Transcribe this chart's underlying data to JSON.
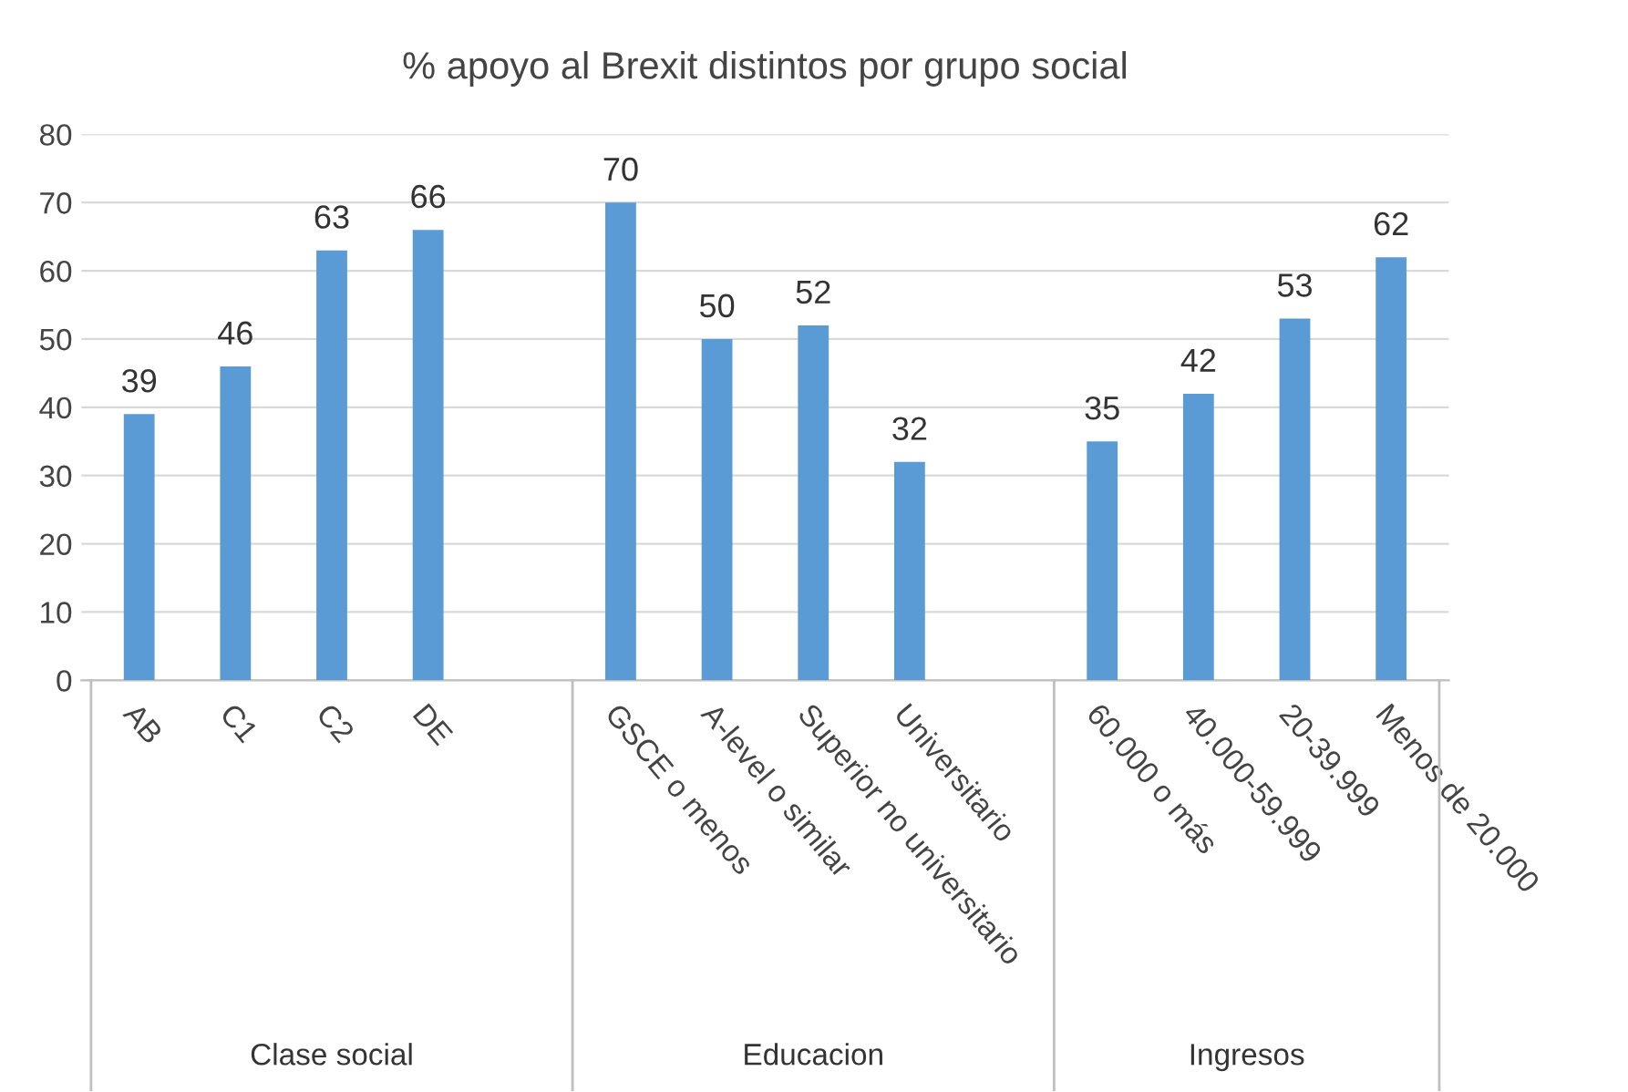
{
  "chart_data": {
    "type": "bar",
    "title": "% apoyo al Brexit distintos por grupo social",
    "categories": [
      "AB",
      "C1",
      "C2",
      "DE",
      null,
      "GSCE o menos",
      "A-level o similar",
      "Superior no universitario",
      "Universitario",
      null,
      "60.000 o más",
      "40.000-59.999",
      "20-39.999",
      "Menos de 20.000"
    ],
    "values": [
      39,
      46,
      63,
      66,
      null,
      70,
      50,
      52,
      32,
      null,
      35,
      42,
      53,
      62
    ],
    "color": "#5b9bd5",
    "ylim": [
      0,
      80
    ],
    "yticks": [
      0,
      10,
      20,
      30,
      40,
      50,
      60,
      70,
      80
    ],
    "grid": "y",
    "data_labels": true,
    "legend": false,
    "annotations": [
      "Clase social",
      "Educacion",
      "Ingresos"
    ]
  }
}
